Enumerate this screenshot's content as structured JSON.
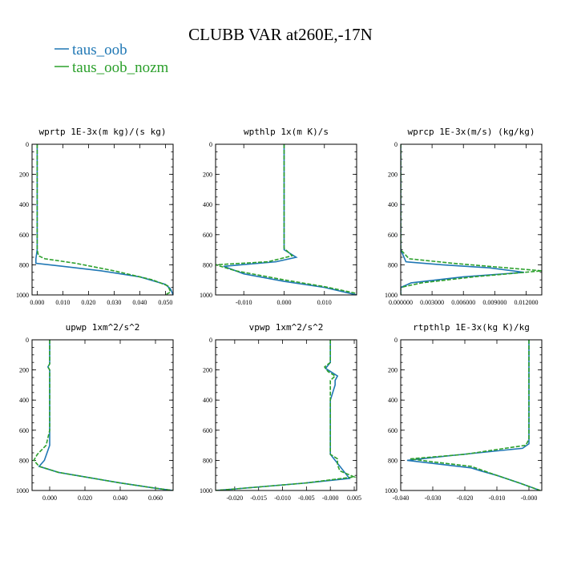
{
  "figure_title": "CLUBB VAR at260E,-17N",
  "legend": [
    {
      "label": "taus_oob",
      "color": "#1f77b4"
    },
    {
      "label": "taus_oob_nozm",
      "color": "#2ca02c"
    }
  ],
  "colors": {
    "series_1": "#1f77b4",
    "series_2": "#2ca02c"
  },
  "chart_data": [
    {
      "type": "line",
      "title": "wprtp  1E-3x(m kg)/(s kg)",
      "xlim": [
        -0.002,
        0.053
      ],
      "ylim": [
        1000,
        0
      ],
      "xticks": [
        0.0,
        0.01,
        0.02,
        0.03,
        0.04,
        0.05
      ],
      "xtick_labels": [
        "0.000",
        "0.010",
        "0.020",
        "0.030",
        "0.040",
        "0.050"
      ],
      "yticks": [
        0,
        200,
        400,
        600,
        800,
        1000
      ],
      "ytick_labels": [
        "0",
        "200",
        "400",
        "600",
        "800",
        "1000"
      ],
      "series": [
        {
          "name": "taus_oob",
          "style": "solid",
          "points": [
            [
              0.0,
              0
            ],
            [
              0.0,
              200
            ],
            [
              0.0,
              400
            ],
            [
              0.0,
              600
            ],
            [
              0.0,
              700
            ],
            [
              -0.0005,
              760
            ],
            [
              -0.0005,
              790
            ],
            [
              0.01,
              810
            ],
            [
              0.025,
              840
            ],
            [
              0.04,
              880
            ],
            [
              0.05,
              930
            ],
            [
              0.052,
              960
            ],
            [
              0.053,
              1000
            ]
          ]
        },
        {
          "name": "taus_oob_nozm",
          "style": "dashed",
          "points": [
            [
              0.0,
              0
            ],
            [
              0.0,
              200
            ],
            [
              0.0,
              400
            ],
            [
              0.0,
              600
            ],
            [
              0.0,
              700
            ],
            [
              0.0005,
              740
            ],
            [
              0.003,
              760
            ],
            [
              0.015,
              790
            ],
            [
              0.03,
              840
            ],
            [
              0.045,
              900
            ],
            [
              0.051,
              940
            ],
            [
              0.052,
              980
            ],
            [
              0.05,
              1000
            ]
          ]
        }
      ]
    },
    {
      "type": "line",
      "title": "wpthlp  1x(m K)/s",
      "xlim": [
        -0.017,
        0.018
      ],
      "ylim": [
        1000,
        0
      ],
      "xticks": [
        -0.01,
        0.0,
        0.01
      ],
      "xtick_labels": [
        "-0.010",
        "0.000",
        "0.010"
      ],
      "yticks": [
        0,
        200,
        400,
        600,
        800,
        1000
      ],
      "ytick_labels": [
        "0",
        "200",
        "400",
        "600",
        "800",
        "1000"
      ],
      "series": [
        {
          "name": "taus_oob",
          "style": "solid",
          "points": [
            [
              0.0,
              0
            ],
            [
              0.0,
              200
            ],
            [
              0.0,
              400
            ],
            [
              0.0,
              600
            ],
            [
              0.0,
              700
            ],
            [
              0.003,
              750
            ],
            [
              -0.002,
              780
            ],
            [
              -0.015,
              810
            ],
            [
              -0.01,
              860
            ],
            [
              0.0,
              910
            ],
            [
              0.01,
              950
            ],
            [
              0.018,
              1000
            ]
          ]
        },
        {
          "name": "taus_oob_nozm",
          "style": "dashed",
          "points": [
            [
              0.0,
              0
            ],
            [
              0.0,
              200
            ],
            [
              0.0,
              400
            ],
            [
              0.0,
              600
            ],
            [
              0.0,
              690
            ],
            [
              0.002,
              740
            ],
            [
              -0.004,
              780
            ],
            [
              -0.017,
              800
            ],
            [
              -0.012,
              840
            ],
            [
              0.0,
              900
            ],
            [
              0.01,
              945
            ],
            [
              0.018,
              990
            ]
          ]
        }
      ]
    },
    {
      "type": "line",
      "title": "wprcp  1E-3x(m/s) (kg/kg)",
      "xlim": [
        0.0,
        0.0135
      ],
      "ylim": [
        1000,
        0
      ],
      "xticks": [
        0.0,
        0.003,
        0.006,
        0.009,
        0.012
      ],
      "xtick_labels": [
        "0.000000",
        "0.003000",
        "0.006000",
        "0.009000",
        "0.012000"
      ],
      "yticks": [
        0,
        200,
        400,
        600,
        800,
        1000
      ],
      "ytick_labels": [
        "0",
        "200",
        "400",
        "600",
        "800",
        "1000"
      ],
      "series": [
        {
          "name": "taus_oob",
          "style": "solid",
          "points": [
            [
              0.0,
              0
            ],
            [
              0.0,
              600
            ],
            [
              0.0,
              700
            ],
            [
              0.0005,
              780
            ],
            [
              0.004,
              800
            ],
            [
              0.0085,
              820
            ],
            [
              0.0118,
              850
            ],
            [
              0.006,
              880
            ],
            [
              0.001,
              920
            ],
            [
              0.0,
              950
            ],
            [
              0.0,
              1000
            ]
          ]
        },
        {
          "name": "taus_oob_nozm",
          "style": "dashed",
          "points": [
            [
              0.0,
              0
            ],
            [
              0.0,
              600
            ],
            [
              0.0,
              700
            ],
            [
              0.0008,
              760
            ],
            [
              0.005,
              790
            ],
            [
              0.0135,
              840
            ],
            [
              0.007,
              880
            ],
            [
              0.002,
              920
            ],
            [
              0.0,
              950
            ],
            [
              0.0,
              1000
            ]
          ]
        }
      ]
    },
    {
      "type": "line",
      "title": "upwp  1xm^2/s^2",
      "xlim": [
        -0.01,
        0.07
      ],
      "ylim": [
        1000,
        0
      ],
      "xticks": [
        0.0,
        0.02,
        0.04,
        0.06
      ],
      "xtick_labels": [
        "0.000",
        "0.020",
        "0.040",
        "0.060"
      ],
      "yticks": [
        0,
        200,
        400,
        600,
        800,
        1000
      ],
      "ytick_labels": [
        "0",
        "200",
        "400",
        "600",
        "800",
        "1000"
      ],
      "series": [
        {
          "name": "taus_oob",
          "style": "solid",
          "points": [
            [
              0.0,
              0
            ],
            [
              0.0,
              160
            ],
            [
              -0.001,
              180
            ],
            [
              0.0,
              200
            ],
            [
              0.0,
              400
            ],
            [
              0.0,
              600
            ],
            [
              0.0,
              700
            ],
            [
              -0.003,
              800
            ],
            [
              -0.006,
              840
            ],
            [
              0.005,
              880
            ],
            [
              0.02,
              910
            ],
            [
              0.04,
              950
            ],
            [
              0.06,
              985
            ],
            [
              0.07,
              1000
            ]
          ]
        },
        {
          "name": "taus_oob_nozm",
          "style": "dashed",
          "points": [
            [
              0.0,
              0
            ],
            [
              0.0,
              160
            ],
            [
              -0.001,
              180
            ],
            [
              0.0,
              200
            ],
            [
              0.0,
              400
            ],
            [
              0.0,
              600
            ],
            [
              -0.002,
              700
            ],
            [
              -0.007,
              760
            ],
            [
              -0.009,
              800
            ],
            [
              -0.006,
              840
            ],
            [
              0.005,
              880
            ],
            [
              0.02,
              910
            ],
            [
              0.04,
              950
            ],
            [
              0.06,
              985
            ],
            [
              0.07,
              1000
            ]
          ]
        }
      ]
    },
    {
      "type": "line",
      "title": "vpwp  1xm^2/s^2",
      "xlim": [
        -0.024,
        0.0055
      ],
      "ylim": [
        1000,
        0
      ],
      "xticks": [
        -0.02,
        -0.015,
        -0.01,
        -0.005,
        0.0,
        0.005
      ],
      "xtick_labels": [
        "-0.020",
        "-0.015",
        "-0.010",
        "-0.005",
        "-0.000",
        "0.005"
      ],
      "yticks": [
        0,
        200,
        400,
        600,
        800,
        1000
      ],
      "ytick_labels": [
        "0",
        "200",
        "400",
        "600",
        "800",
        "1000"
      ],
      "series": [
        {
          "name": "taus_oob",
          "style": "solid",
          "points": [
            [
              0.0,
              0
            ],
            [
              0.0,
              150
            ],
            [
              -0.001,
              190
            ],
            [
              0.0,
              210
            ],
            [
              0.0015,
              240
            ],
            [
              0.001,
              270
            ],
            [
              0.001,
              300
            ],
            [
              0.0,
              400
            ],
            [
              0.0,
              600
            ],
            [
              0.0,
              760
            ],
            [
              0.001,
              800
            ],
            [
              0.002,
              840
            ],
            [
              0.003,
              880
            ],
            [
              0.004,
              920
            ],
            [
              -0.005,
              950
            ],
            [
              -0.02,
              990
            ],
            [
              -0.024,
              1000
            ]
          ]
        },
        {
          "name": "taus_oob_nozm",
          "style": "dashed",
          "points": [
            [
              0.0,
              0
            ],
            [
              0.0,
              150
            ],
            [
              -0.0012,
              180
            ],
            [
              -0.0005,
              210
            ],
            [
              0.001,
              240
            ],
            [
              0.0,
              270
            ],
            [
              0.0,
              300
            ],
            [
              0.0,
              400
            ],
            [
              0.0,
              600
            ],
            [
              0.0,
              760
            ],
            [
              0.0015,
              790
            ],
            [
              0.0015,
              830
            ],
            [
              0.002,
              870
            ],
            [
              0.005,
              910
            ],
            [
              -0.005,
              950
            ],
            [
              -0.02,
              990
            ],
            [
              -0.024,
              1000
            ]
          ]
        }
      ]
    },
    {
      "type": "line",
      "title": "rtpthlp  1E-3x(kg K)/kg",
      "xlim": [
        -0.04,
        0.004
      ],
      "ylim": [
        1000,
        0
      ],
      "xticks": [
        -0.04,
        -0.03,
        -0.02,
        -0.01,
        0.0
      ],
      "xtick_labels": [
        "-0.040",
        "-0.030",
        "-0.020",
        "-0.010",
        "-0.000"
      ],
      "yticks": [
        0,
        200,
        400,
        600,
        800,
        1000
      ],
      "ytick_labels": [
        "0",
        "200",
        "400",
        "600",
        "800",
        "1000"
      ],
      "series": [
        {
          "name": "taus_oob",
          "style": "solid",
          "points": [
            [
              0.0,
              0
            ],
            [
              0.0,
              200
            ],
            [
              0.0,
              400
            ],
            [
              0.0,
              600
            ],
            [
              0.0,
              690
            ],
            [
              -0.002,
              720
            ],
            [
              -0.025,
              770
            ],
            [
              -0.038,
              800
            ],
            [
              -0.03,
              820
            ],
            [
              -0.018,
              850
            ],
            [
              -0.015,
              870
            ],
            [
              -0.01,
              900
            ],
            [
              -0.003,
              950
            ],
            [
              0.0035,
              1000
            ]
          ]
        },
        {
          "name": "taus_oob_nozm",
          "style": "dashed",
          "points": [
            [
              0.0,
              0
            ],
            [
              0.0,
              200
            ],
            [
              0.0,
              400
            ],
            [
              0.0,
              600
            ],
            [
              0.0,
              660
            ],
            [
              -0.001,
              700
            ],
            [
              -0.02,
              760
            ],
            [
              -0.037,
              790
            ],
            [
              -0.03,
              810
            ],
            [
              -0.018,
              840
            ],
            [
              -0.014,
              870
            ],
            [
              -0.01,
              900
            ],
            [
              -0.003,
              950
            ],
            [
              0.0035,
              1000
            ]
          ]
        }
      ]
    }
  ]
}
